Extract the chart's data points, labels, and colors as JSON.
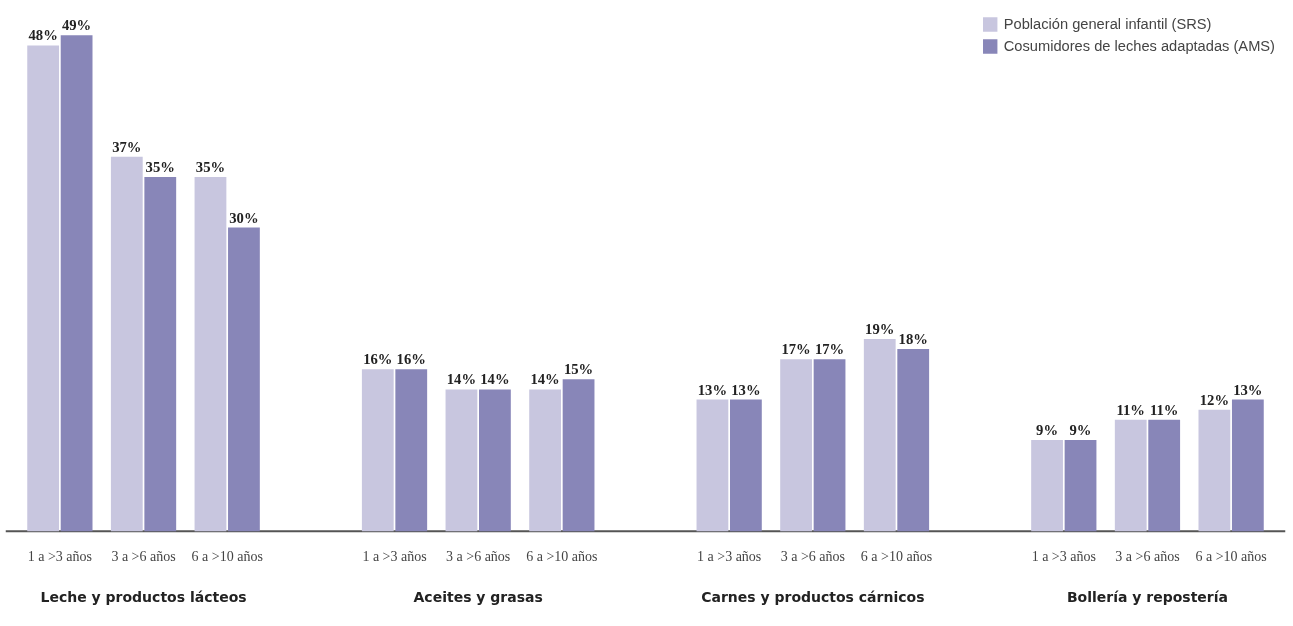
{
  "chart_data": {
    "type": "bar",
    "categories": [
      "1 a >3 años",
      "3 a >6 años",
      "6 a >10 años",
      "1 a >3 años",
      "3 a >6 años",
      "6 a >10 años",
      "1 a >3 años",
      "3 a >6 años",
      "6 a >10 años",
      "1 a >3 años",
      "3 a >6 años",
      "6 a >10 años"
    ],
    "series": [
      {
        "name": "Población general infantil (SRS)",
        "color": "#c8c6df",
        "values": [
          48,
          37,
          35,
          16,
          14,
          14,
          13,
          17,
          19,
          9,
          11,
          12
        ],
        "value_labels": [
          "48%",
          "37%",
          "35%",
          "16%",
          "14%",
          "14%",
          "13%",
          "17%",
          "19%",
          "9%",
          "11%",
          "12%"
        ]
      },
      {
        "name": "Cosumidores de leches adaptadas (AMS)",
        "color": "#8886b8",
        "values": [
          49,
          35,
          30,
          16,
          14,
          15,
          13,
          17,
          18,
          9,
          11,
          13
        ],
        "value_labels": [
          "49%",
          "35%",
          "30%",
          "16%",
          "14%",
          "15%",
          "13%",
          "17%",
          "18%",
          "9%",
          "11%",
          "13%"
        ]
      }
    ],
    "annotations": [
      "Leche y productos lácteos",
      "Aceites y grasas",
      "Carnes y productos cárnicos",
      "Bollería y repostería"
    ],
    "legend": "top right",
    "grid": false
  }
}
